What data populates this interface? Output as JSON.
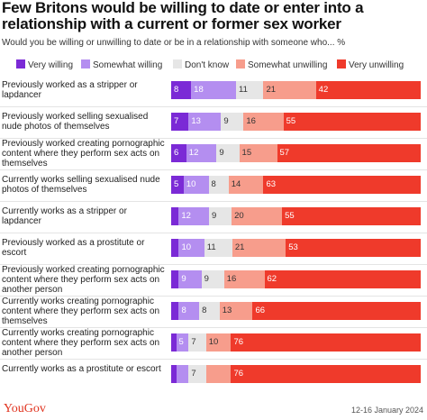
{
  "header": {
    "title": "Few Britons would be willing to date or enter into a relationship with a current or former sex worker",
    "subtitle": "Would you be willing or unwilling to date or be in a relationship with someone who... %"
  },
  "legend": [
    {
      "label": "Very willing",
      "color": "#7b2ad6"
    },
    {
      "label": "Somewhat willing",
      "color": "#b48ef0"
    },
    {
      "label": "Don't know",
      "color": "#e6e6e6"
    },
    {
      "label": "Somewhat unwilling",
      "color": "#f79d8c"
    },
    {
      "label": "Very unwilling",
      "color": "#ef3a2b"
    }
  ],
  "footer": {
    "brand": "YouGov",
    "date": "12-16 January 2024"
  },
  "chart_data": {
    "type": "bar",
    "stacked": true,
    "orientation": "horizontal",
    "categories": [
      "Previously worked as a stripper or lapdancer",
      "Previously worked selling sexualised nude photos of themselves",
      "Previously worked creating pornographic content where they perform sex acts on themselves",
      "Currently works selling sexualised nude photos of themselves",
      "Currently works as a stripper or lapdancer",
      "Previously worked as a prostitute or escort",
      "Previously worked creating pornographic content where they perform sex acts on another person",
      "Currently works creating pornographic content where they perform sex acts on themselves",
      "Currently works creating pornographic content where they perform sex acts on another person",
      "Currently works as a prostitute or escort"
    ],
    "series": [
      {
        "name": "Very willing",
        "values": [
          8,
          7,
          6,
          5,
          3,
          3,
          3,
          3,
          2,
          2
        ]
      },
      {
        "name": "Somewhat willing",
        "values": [
          18,
          13,
          12,
          10,
          12,
          10,
          9,
          8,
          5,
          5
        ]
      },
      {
        "name": "Don't know",
        "values": [
          11,
          9,
          9,
          8,
          9,
          11,
          9,
          8,
          7,
          7
        ]
      },
      {
        "name": "Somewhat unwilling",
        "values": [
          21,
          16,
          15,
          14,
          20,
          21,
          16,
          13,
          10,
          10
        ]
      },
      {
        "name": "Very unwilling",
        "values": [
          42,
          55,
          57,
          63,
          55,
          53,
          62,
          66,
          76,
          76
        ]
      }
    ],
    "labels": [
      [
        "8",
        "18",
        "11",
        "21",
        "42"
      ],
      [
        "7",
        "13",
        "9",
        "16",
        "55"
      ],
      [
        "6",
        "12",
        "9",
        "15",
        "57"
      ],
      [
        "5",
        "10",
        "8",
        "14",
        "63"
      ],
      [
        "",
        "12",
        "9",
        "20",
        "55"
      ],
      [
        "",
        "10",
        "11",
        "21",
        "53"
      ],
      [
        "",
        "9",
        "9",
        "16",
        "62"
      ],
      [
        "",
        "8",
        "8",
        "13",
        "66"
      ],
      [
        "",
        "5",
        "7",
        "10",
        "76"
      ],
      [
        "",
        "",
        "7",
        "",
        "76"
      ]
    ],
    "xlim": [
      0,
      100
    ]
  }
}
